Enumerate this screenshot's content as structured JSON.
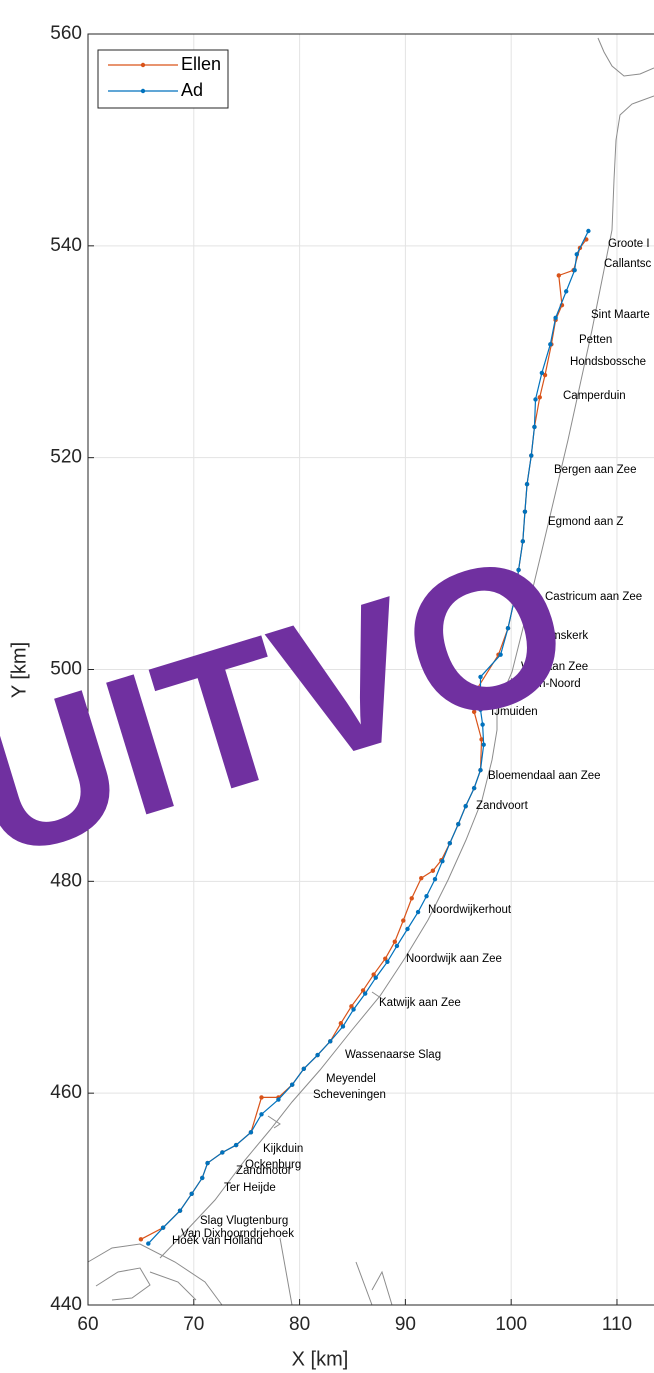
{
  "chart_data": {
    "type": "line",
    "xlabel": "X [km]",
    "ylabel": "Y [km]",
    "xlim": [
      60,
      113.5
    ],
    "ylim": [
      440,
      560
    ],
    "xticks": [
      60,
      70,
      80,
      90,
      100,
      110
    ],
    "yticks": [
      440,
      460,
      480,
      500,
      520,
      540,
      560
    ],
    "grid": true,
    "legend": "upper left",
    "watermark": "UITVO",
    "annotations": [
      "Groote I",
      "Callantsc",
      "Sint Maarte",
      "Petten",
      "Hondsbossche",
      "Camperduin",
      "Bergen aan Zee",
      "Egmond aan Z",
      "Castricum aan Zee",
      "Heemskerk",
      "Wijk aan Zee",
      "Velsen-Noord",
      "IJmuiden",
      "Bloemendaal aan Zee",
      "Zandvoort",
      "Noordwijkerhout",
      "Noordwijk aan Zee",
      "Katwijk aan Zee",
      "Wassenaarse Slag",
      "Meyendel",
      "Scheveningen",
      "Kijkduin",
      "Ockenburg",
      "Zandmotor",
      "Ter Heijde",
      "Slag Vlugtenburg",
      "Van Dixhoorndriehoek",
      "Hoek van Holland"
    ],
    "series": [
      {
        "name": "Ellen",
        "color": "#d95319",
        "x": [
          65.0,
          67.1,
          68.7,
          69.8,
          70.8,
          71.3,
          72.7,
          74.0,
          75.4,
          76.4,
          78.0,
          79.3,
          80.4,
          81.7,
          82.9,
          83.9,
          84.9,
          86.0,
          87.0,
          88.1,
          89.0,
          89.8,
          90.6,
          91.5,
          92.6,
          93.4,
          94.2,
          95.0,
          95.7,
          96.5,
          97.1,
          97.2,
          96.5,
          96.1,
          98.8,
          99.7,
          100.3,
          100.7,
          101.1,
          101.3,
          101.5,
          101.9,
          102.2,
          102.7,
          103.2,
          103.8,
          104.2,
          104.8,
          104.5,
          105.9,
          106.5,
          107.1
        ],
        "values": [
          446.2,
          447.3,
          448.9,
          450.5,
          452.0,
          453.4,
          454.4,
          455.1,
          456.3,
          459.6,
          459.6,
          460.8,
          462.3,
          463.6,
          464.9,
          466.6,
          468.2,
          469.7,
          471.2,
          472.7,
          474.3,
          476.3,
          478.4,
          480.3,
          481.0,
          482.0,
          483.6,
          485.4,
          487.1,
          488.8,
          490.5,
          493.4,
          496.0,
          497.1,
          501.4,
          503.9,
          506.6,
          509.4,
          512.1,
          514.9,
          517.5,
          520.2,
          522.9,
          525.7,
          527.8,
          530.7,
          533.0,
          534.4,
          537.2,
          537.7,
          539.8,
          540.6
        ]
      },
      {
        "name": "Ad",
        "color": "#0072bd",
        "x": [
          65.7,
          67.1,
          68.7,
          69.8,
          70.8,
          71.3,
          72.7,
          74.0,
          75.4,
          76.4,
          78.0,
          79.3,
          80.4,
          81.7,
          82.9,
          84.1,
          85.1,
          86.2,
          87.2,
          88.3,
          89.2,
          90.2,
          91.2,
          92.0,
          92.8,
          93.5,
          94.2,
          95.0,
          95.7,
          96.5,
          97.1,
          97.4,
          97.3,
          97.1,
          97.1,
          99.0,
          99.7,
          100.3,
          100.7,
          101.1,
          101.3,
          101.5,
          101.9,
          102.2,
          102.3,
          102.9,
          103.7,
          104.2,
          105.2,
          106.0,
          106.2,
          107.3
        ],
        "values": [
          445.8,
          447.3,
          448.9,
          450.5,
          452.0,
          453.4,
          454.4,
          455.1,
          456.3,
          458.0,
          459.4,
          460.8,
          462.3,
          463.6,
          464.9,
          466.3,
          467.9,
          469.4,
          470.9,
          472.4,
          473.9,
          475.5,
          477.1,
          478.6,
          480.2,
          481.9,
          483.6,
          485.4,
          487.1,
          488.8,
          490.5,
          492.9,
          494.8,
          496.2,
          499.3,
          501.4,
          503.9,
          506.6,
          509.4,
          512.1,
          514.9,
          517.5,
          520.2,
          522.9,
          525.5,
          528.0,
          530.7,
          533.2,
          535.7,
          537.7,
          539.2,
          541.4
        ]
      }
    ]
  }
}
